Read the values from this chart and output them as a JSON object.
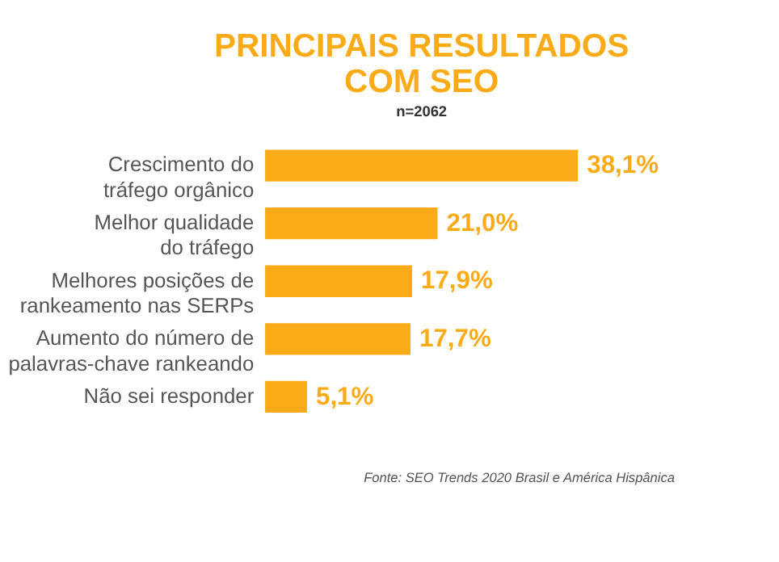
{
  "chart_data": {
    "type": "bar",
    "orientation": "horizontal",
    "title": [
      "PRINCIPAIS RESULTADOS",
      "COM SEO"
    ],
    "subtitle": "n=2062",
    "categories": [
      "Crescimento do\ntráfego orgânico",
      "Melhor qualidade\ndo tráfego",
      "Melhores posições de\nrankeamento nas SERPs",
      "Aumento do número de\npalavras-chave rankeando",
      "Não sei responder"
    ],
    "values": [
      38.1,
      21.0,
      17.9,
      17.7,
      5.1
    ],
    "value_labels": [
      "38,1%",
      "21,0%",
      "17,9%",
      "17,7%",
      "5,1%"
    ],
    "color": "#fbab18",
    "annotations": [
      "Fonte: SEO Trends 2020 Brasil e América Hispânica"
    ]
  }
}
